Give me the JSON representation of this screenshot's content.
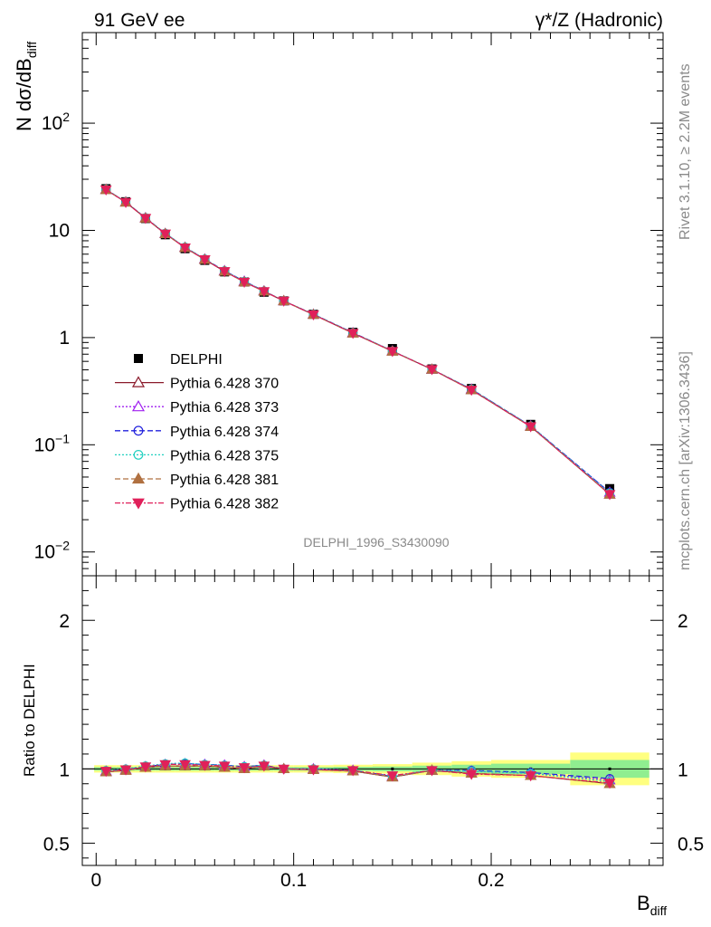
{
  "header": {
    "left_title": "91 GeV ee",
    "right_title_greek": "γ",
    "right_title_rest": "*/Z (Hadronic)"
  },
  "side_labels": {
    "rivet": "Rivet 3.1.10, ≥ 2.2M events",
    "mcplots": "mcplots.cern.ch [arXiv:1306.3436]"
  },
  "analysis_id": "DELPHI_1996_S3430090",
  "chart_data": [
    {
      "type": "line",
      "panel": "main",
      "ylabel_main": "N dσ/dB",
      "ylabel_sub": "diff",
      "yscale": "log",
      "ylim": [
        0.006,
        700
      ],
      "xlim": [
        -0.007,
        0.287
      ],
      "y_ticks": [
        {
          "v": 0.01,
          "base": "10",
          "exp": "−2"
        },
        {
          "v": 0.1,
          "base": "10",
          "exp": "−1"
        },
        {
          "v": 1,
          "base": "1",
          "exp": ""
        },
        {
          "v": 10,
          "base": "10",
          "exp": ""
        },
        {
          "v": 100,
          "base": "10",
          "exp": "2"
        }
      ],
      "x": [
        0.005,
        0.015,
        0.025,
        0.035,
        0.045,
        0.055,
        0.065,
        0.075,
        0.085,
        0.095,
        0.11,
        0.13,
        0.15,
        0.17,
        0.19,
        0.22,
        0.26
      ],
      "data_series": {
        "name": "DELPHI",
        "values": [
          24.5,
          18.5,
          12.9,
          9.1,
          6.75,
          5.25,
          4.1,
          3.3,
          2.65,
          2.2,
          1.65,
          1.12,
          0.79,
          0.51,
          0.335,
          0.155,
          0.039
        ]
      },
      "series": [
        {
          "name": "Pythia 6.428 370",
          "color": "#8b1a2b",
          "dash": "",
          "marker": "triangle-open",
          "values": [
            24.0,
            18.3,
            13.0,
            9.3,
            6.9,
            5.35,
            4.15,
            3.3,
            2.7,
            2.2,
            1.64,
            1.1,
            0.745,
            0.505,
            0.325,
            0.148,
            0.0345
          ]
        },
        {
          "name": "Pythia 6.428 373",
          "color": "#a020f0",
          "dash": "2,2",
          "marker": "triangle-open",
          "values": [
            24.1,
            18.4,
            13.1,
            9.35,
            6.95,
            5.4,
            4.2,
            3.35,
            2.72,
            2.2,
            1.65,
            1.11,
            0.75,
            0.505,
            0.33,
            0.15,
            0.036
          ]
        },
        {
          "name": "Pythia 6.428 374",
          "color": "#2222dd",
          "dash": "6,3",
          "marker": "circle-open",
          "values": [
            24.1,
            18.4,
            13.1,
            9.35,
            6.95,
            5.4,
            4.2,
            3.35,
            2.72,
            2.2,
            1.65,
            1.11,
            0.75,
            0.505,
            0.33,
            0.15,
            0.036
          ]
        },
        {
          "name": "Pythia 6.428 375",
          "color": "#20d0c0",
          "dash": "2,2",
          "marker": "circle-open",
          "values": [
            24.2,
            18.4,
            13.15,
            9.4,
            7.0,
            5.4,
            4.2,
            3.35,
            2.72,
            2.2,
            1.65,
            1.11,
            0.75,
            0.505,
            0.33,
            0.15,
            0.0355
          ]
        },
        {
          "name": "Pythia 6.428 381",
          "color": "#b07040",
          "dash": "6,3",
          "marker": "triangle-filled",
          "values": [
            24.0,
            18.3,
            13.0,
            9.3,
            6.9,
            5.35,
            4.15,
            3.3,
            2.7,
            2.2,
            1.64,
            1.1,
            0.745,
            0.505,
            0.325,
            0.148,
            0.0345
          ]
        },
        {
          "name": "Pythia 6.428 382",
          "color": "#e0205a",
          "dash": "6,2,2,2",
          "marker": "triangle-down-filled",
          "values": [
            24.0,
            18.3,
            13.0,
            9.3,
            6.9,
            5.35,
            4.15,
            3.3,
            2.7,
            2.2,
            1.64,
            1.1,
            0.745,
            0.505,
            0.325,
            0.148,
            0.0345
          ]
        }
      ]
    },
    {
      "type": "line",
      "panel": "ratio",
      "ylabel": "Ratio to DELPHI",
      "xlabel_main": "B",
      "xlabel_sub": "diff",
      "ylim": [
        0.35,
        2.3
      ],
      "y_ticks": [
        {
          "v": 0.5,
          "label": "0.5"
        },
        {
          "v": 1,
          "label": "1"
        },
        {
          "v": 2,
          "label": "2"
        }
      ],
      "x_ticks": [
        {
          "v": 0,
          "label": "0"
        },
        {
          "v": 0.1,
          "label": "0.1"
        },
        {
          "v": 0.2,
          "label": "0.2"
        }
      ],
      "bands": [
        {
          "x0": -0.001,
          "x1": 0.01,
          "inner": 0.012,
          "outer": 0.025
        },
        {
          "x0": 0.01,
          "x1": 0.02,
          "inner": 0.012,
          "outer": 0.025
        },
        {
          "x0": 0.02,
          "x1": 0.03,
          "inner": 0.012,
          "outer": 0.025
        },
        {
          "x0": 0.03,
          "x1": 0.04,
          "inner": 0.012,
          "outer": 0.025
        },
        {
          "x0": 0.04,
          "x1": 0.05,
          "inner": 0.012,
          "outer": 0.025
        },
        {
          "x0": 0.05,
          "x1": 0.06,
          "inner": 0.012,
          "outer": 0.025
        },
        {
          "x0": 0.06,
          "x1": 0.07,
          "inner": 0.012,
          "outer": 0.025
        },
        {
          "x0": 0.07,
          "x1": 0.08,
          "inner": 0.012,
          "outer": 0.025
        },
        {
          "x0": 0.08,
          "x1": 0.09,
          "inner": 0.012,
          "outer": 0.025
        },
        {
          "x0": 0.09,
          "x1": 0.1,
          "inner": 0.012,
          "outer": 0.025
        },
        {
          "x0": 0.1,
          "x1": 0.12,
          "inner": 0.012,
          "outer": 0.025
        },
        {
          "x0": 0.12,
          "x1": 0.14,
          "inner": 0.014,
          "outer": 0.028
        },
        {
          "x0": 0.14,
          "x1": 0.16,
          "inner": 0.016,
          "outer": 0.032
        },
        {
          "x0": 0.16,
          "x1": 0.18,
          "inner": 0.022,
          "outer": 0.042
        },
        {
          "x0": 0.18,
          "x1": 0.2,
          "inner": 0.028,
          "outer": 0.052
        },
        {
          "x0": 0.2,
          "x1": 0.24,
          "inner": 0.035,
          "outer": 0.06
        },
        {
          "x0": 0.24,
          "x1": 0.28,
          "inner": 0.06,
          "outer": 0.11
        }
      ],
      "data_values": [
        1,
        1,
        1,
        1,
        1,
        1,
        1,
        1,
        1,
        1,
        1,
        1,
        1,
        1,
        1,
        1,
        1
      ],
      "series": [
        {
          "name": "Pythia 6.428 370",
          "values": [
            0.98,
            0.99,
            1.01,
            1.02,
            1.02,
            1.02,
            1.01,
            1.0,
            1.02,
            1.0,
            0.995,
            0.985,
            0.945,
            0.99,
            0.97,
            0.955,
            0.9
          ]
        },
        {
          "name": "Pythia 6.428 373",
          "values": [
            0.985,
            0.995,
            1.015,
            1.03,
            1.035,
            1.03,
            1.025,
            1.015,
            1.025,
            1.0,
            1.0,
            0.99,
            0.95,
            0.99,
            0.985,
            0.97,
            0.925
          ]
        },
        {
          "name": "Pythia 6.428 374",
          "values": [
            0.985,
            0.995,
            1.015,
            1.03,
            1.035,
            1.03,
            1.025,
            1.015,
            1.025,
            1.0,
            1.0,
            0.99,
            0.95,
            0.99,
            0.99,
            0.975,
            0.935
          ]
        },
        {
          "name": "Pythia 6.428 375",
          "values": [
            0.99,
            1.0,
            1.02,
            1.035,
            1.04,
            1.03,
            1.025,
            1.015,
            1.025,
            1.0,
            1.0,
            0.99,
            0.95,
            0.99,
            0.985,
            0.97,
            0.915
          ]
        },
        {
          "name": "Pythia 6.428 381",
          "values": [
            0.98,
            0.99,
            1.01,
            1.02,
            1.02,
            1.02,
            1.01,
            1.0,
            1.02,
            1.0,
            0.995,
            0.985,
            0.945,
            0.99,
            0.97,
            0.955,
            0.9
          ]
        },
        {
          "name": "Pythia 6.428 382",
          "values": [
            0.985,
            0.995,
            1.015,
            1.03,
            1.03,
            1.025,
            1.02,
            1.01,
            1.02,
            1.0,
            0.995,
            0.99,
            0.955,
            0.99,
            0.965,
            0.955,
            0.905
          ]
        }
      ]
    }
  ],
  "colors": {
    "band_inner": "#90ee90",
    "band_outer": "#ffff80",
    "axis": "#000000",
    "grey_text": "#8a8a8a"
  }
}
